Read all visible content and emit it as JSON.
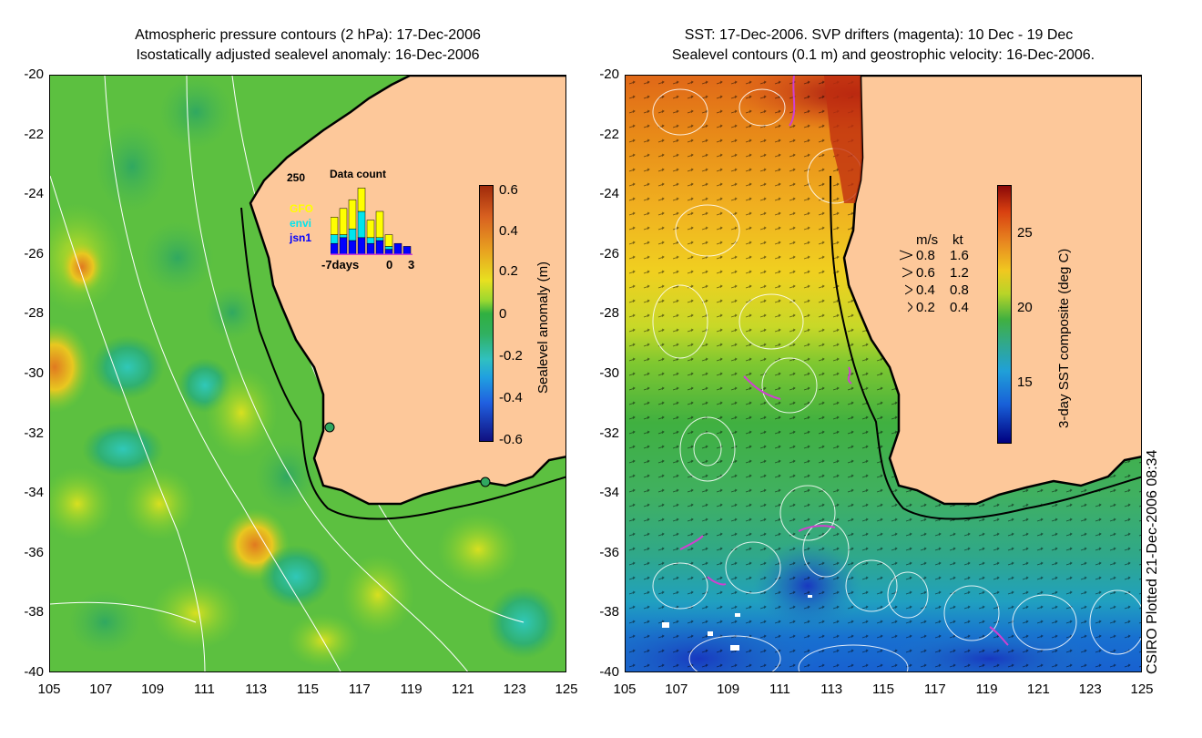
{
  "left_panel": {
    "title_line1": "Atmospheric pressure contours (2 hPa): 17-Dec-2006",
    "title_line2": "Isostatically adjusted sealevel anomaly: 16-Dec-2006",
    "y_ticks": [
      "-20",
      "-22",
      "-24",
      "-26",
      "-28",
      "-30",
      "-32",
      "-34",
      "-36",
      "-38",
      "-40"
    ],
    "x_ticks": [
      "105",
      "107",
      "109",
      "111",
      "113",
      "115",
      "117",
      "119",
      "121",
      "123",
      "125"
    ],
    "colorbar": {
      "label": "Sealevel anomaly (m)",
      "ticks": [
        "0.6",
        "0.4",
        "0.2",
        "0",
        "-0.2",
        "-0.4",
        "-0.6"
      ],
      "range": [
        -0.6,
        0.6
      ]
    },
    "inset": {
      "title": "Data count",
      "ymax_label": "250",
      "satellites": [
        {
          "name": "GFO",
          "color": "#ffff00"
        },
        {
          "name": "envi",
          "color": "#00e5ee"
        },
        {
          "name": "jsn1",
          "color": "#0000ff"
        }
      ],
      "x_label_left": "-7days",
      "x_label_zero": "0",
      "x_label_right": "3",
      "bars": [
        {
          "day": -7,
          "gfo": 60,
          "envi": 30,
          "jsn1": 40
        },
        {
          "day": -6,
          "gfo": 90,
          "envi": 10,
          "jsn1": 60
        },
        {
          "day": -5,
          "gfo": 100,
          "envi": 40,
          "jsn1": 50
        },
        {
          "day": -4,
          "gfo": 80,
          "envi": 90,
          "jsn1": 60
        },
        {
          "day": -3,
          "gfo": 60,
          "envi": 20,
          "jsn1": 40
        },
        {
          "day": -2,
          "gfo": 90,
          "envi": 10,
          "jsn1": 50
        },
        {
          "day": -1,
          "gfo": 40,
          "envi": 10,
          "jsn1": 20
        },
        {
          "day": 0,
          "gfo": 0,
          "envi": 0,
          "jsn1": 40
        },
        {
          "day": 1,
          "gfo": 0,
          "envi": 0,
          "jsn1": 30
        }
      ]
    }
  },
  "right_panel": {
    "title_line1": "SST: 17-Dec-2006. SVP drifters (magenta): 10 Dec - 19 Dec",
    "title_line2": "Sealevel contours (0.1 m) and geostrophic velocity: 16-Dec-2006.",
    "y_ticks": [
      "-20",
      "-22",
      "-24",
      "-26",
      "-28",
      "-30",
      "-32",
      "-34",
      "-36",
      "-38",
      "-40"
    ],
    "x_ticks": [
      "105",
      "107",
      "109",
      "111",
      "113",
      "115",
      "117",
      "119",
      "121",
      "123",
      "125"
    ],
    "colorbar": {
      "label": "3-day SST composite (deg C)",
      "ticks": [
        "25",
        "20",
        "15"
      ],
      "range": [
        11,
        28
      ]
    },
    "speed_legend": {
      "header_ms": "m/s",
      "header_kt": "kt",
      "rows": [
        {
          "ms": "0.8",
          "kt": "1.6"
        },
        {
          "ms": "0.6",
          "kt": "1.2"
        },
        {
          "ms": "0.4",
          "kt": "0.8"
        },
        {
          "ms": "0.2",
          "kt": "0.4"
        }
      ]
    }
  },
  "footer_text": "CSIRO Plotted 21-Dec-2006 08:34",
  "colors": {
    "land": "#fdc89a",
    "coast": "#000000",
    "contour": "#ffffff",
    "drifter": "#d040d0"
  }
}
